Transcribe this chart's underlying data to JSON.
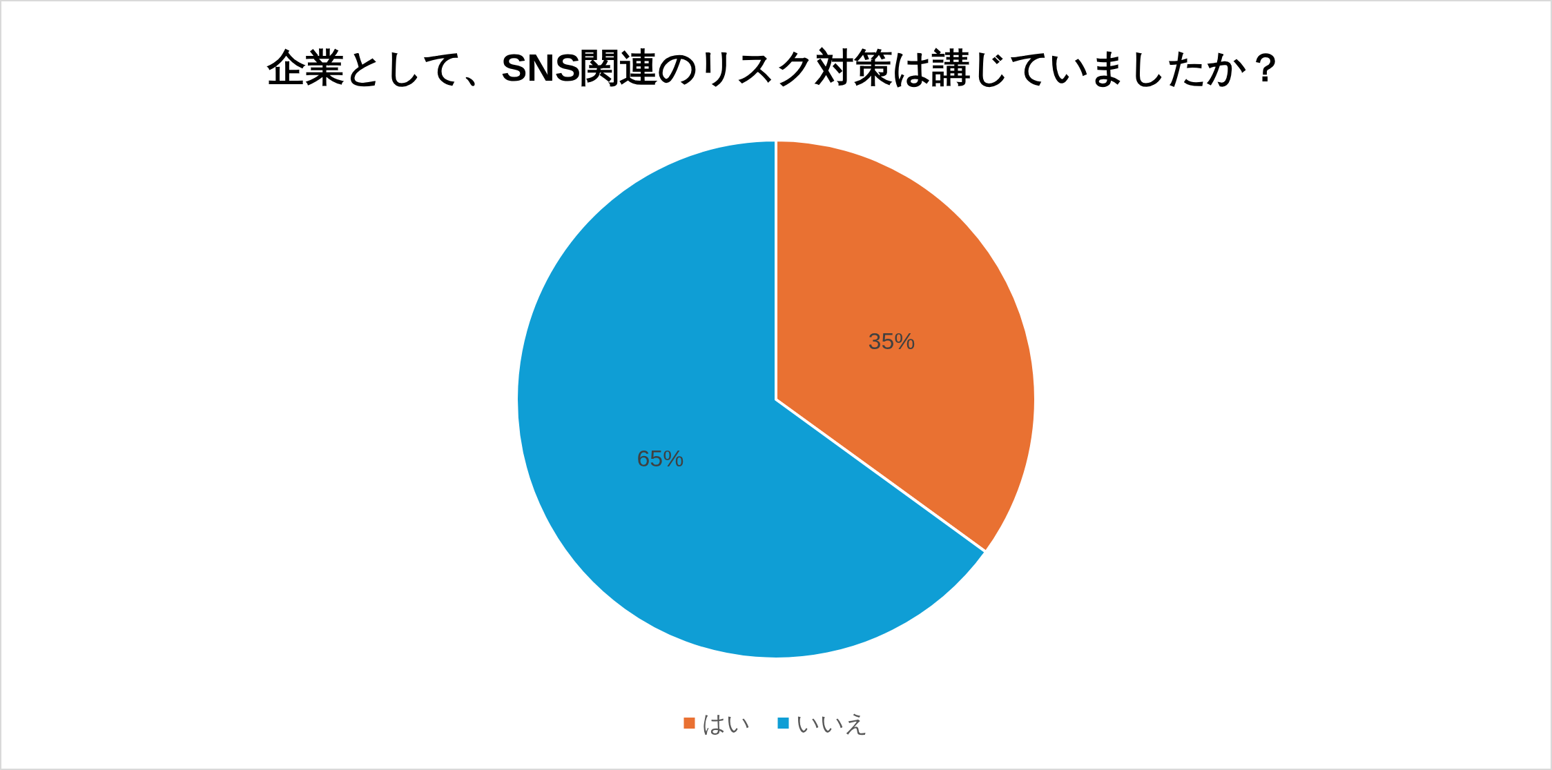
{
  "chart_data": {
    "type": "pie",
    "title": "企業として、SNS関連のリスク対策は講じていましたか？",
    "categories": [
      "はい",
      "いいえ"
    ],
    "values": [
      35,
      65
    ],
    "colors": [
      "#e97132",
      "#0f9ed5"
    ],
    "value_labels": [
      "35%",
      "65%"
    ],
    "legend": "bottom"
  }
}
